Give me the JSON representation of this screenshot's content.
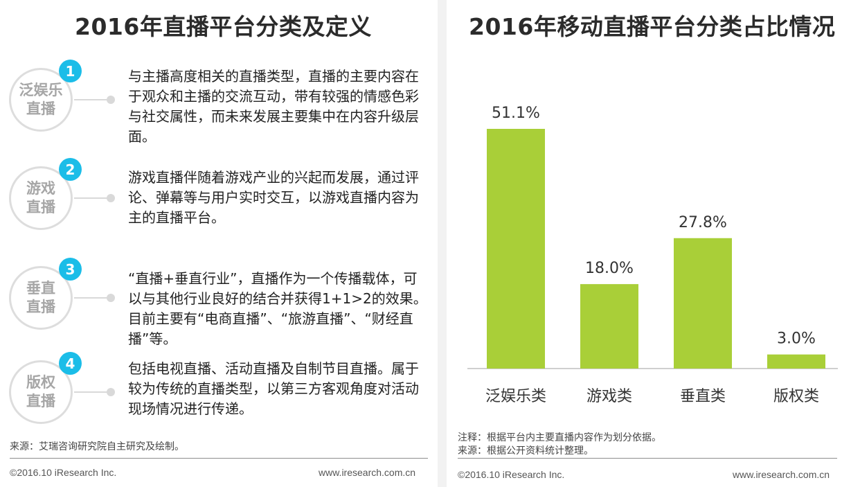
{
  "left": {
    "title": "2016年直播平台分类及定义",
    "categories": [
      {
        "num": "1",
        "name_line1": "泛娱乐",
        "name_line2": "直播",
        "text": "与主播高度相关的直播类型，直播的主要内容在于观众和主播的交流互动，带有较强的情感色彩与社交属性，而未来发展主要集中在内容升级层面。"
      },
      {
        "num": "2",
        "name_line1": "游戏",
        "name_line2": "直播",
        "text": "游戏直播伴随着游戏产业的兴起而发展，通过评论、弹幕等与用户实时交互，以游戏直播内容为主的直播平台。"
      },
      {
        "num": "3",
        "name_line1": "垂直",
        "name_line2": "直播",
        "text": "“直播+垂直行业”，直播作为一个传播载体，可以与其他行业良好的结合并获得1+1>2的效果。目前主要有“电商直播”、“旅游直播”、“财经直播”等。"
      },
      {
        "num": "4",
        "name_line1": "版权",
        "name_line2": "直播",
        "text": "包括电视直播、活动直播及自制节目直播。属于较为传统的直播类型，以第三方客观角度对活动现场情况进行传递。"
      }
    ],
    "source": "来源：艾瑞咨询研究院自主研究及绘制。",
    "copyright": "©2016.10 iResearch Inc.",
    "website": "www.iresearch.com.cn"
  },
  "right": {
    "title": "2016年移动直播平台分类占比情况",
    "note": "注释：根据平台内主要直播内容作为划分依据。",
    "source": "来源：根据公开资料统计整理。",
    "copyright": "©2016.10 iResearch Inc.",
    "website": "www.iresearch.com.cn"
  },
  "chart_data": {
    "type": "bar",
    "title": "2016年移动直播平台分类占比情况",
    "categories": [
      "泛娱乐类",
      "游戏类",
      "垂直类",
      "版权类"
    ],
    "values": [
      51.1,
      18.0,
      27.8,
      3.0
    ],
    "labels": [
      "51.1%",
      "18.0%",
      "27.8%",
      "3.0%"
    ],
    "unit": "%",
    "ylim": [
      0,
      55
    ],
    "bar_color": "#a9cf38",
    "grid": false,
    "legend": "none"
  }
}
